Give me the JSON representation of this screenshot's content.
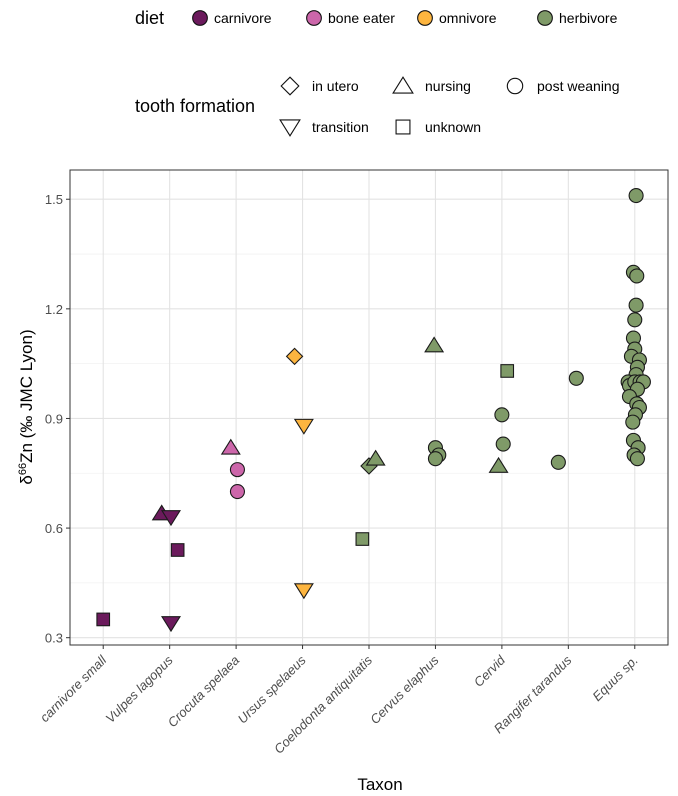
{
  "legend": {
    "diet": {
      "title": "diet",
      "items": [
        {
          "label": "carnivore",
          "color": "#6B1A5C"
        },
        {
          "label": "bone eater",
          "color": "#CC66AA"
        },
        {
          "label": "omnivore",
          "color": "#FDB53F"
        },
        {
          "label": "herbivore",
          "color": "#7F9A68"
        }
      ]
    },
    "tooth_formation": {
      "title": "tooth formation",
      "items": [
        {
          "label": "in utero",
          "shape": "diamond"
        },
        {
          "label": "nursing",
          "shape": "triangle-up"
        },
        {
          "label": "post weaning",
          "shape": "circle"
        },
        {
          "label": "transition",
          "shape": "triangle-down"
        },
        {
          "label": "unknown",
          "shape": "square"
        }
      ]
    }
  },
  "chart_data": {
    "type": "scatter",
    "xlabel": "Taxon",
    "ylabel_main": "δ",
    "ylabel_sup": "66",
    "ylabel_rest": "Zn (‰ JMC Lyon)",
    "categories": [
      "carnivore small",
      "Vulpes lagopus",
      "Crocuta spelaea",
      "Ursus spelaeus",
      "Coelodonta antiquitatis",
      "Cervus elaphus",
      "Cervid",
      "Rangifer tarandus",
      "Equus sp."
    ],
    "ylim": [
      0.28,
      1.58
    ],
    "yticks": [
      0.3,
      0.6,
      0.9,
      1.2,
      1.5
    ],
    "ytick_labels": [
      "0.3",
      "0.6",
      "0.9",
      "1.2",
      "1.5"
    ],
    "grid": true,
    "points": [
      {
        "taxon": "carnivore small",
        "dx": 0.0,
        "y": 0.35,
        "diet": "carnivore",
        "tooth": "unknown"
      },
      {
        "taxon": "Vulpes lagopus",
        "dx": -0.12,
        "y": 0.64,
        "diet": "carnivore",
        "tooth": "triangle-up"
      },
      {
        "taxon": "Vulpes lagopus",
        "dx": 0.02,
        "y": 0.63,
        "diet": "carnivore",
        "tooth": "transition"
      },
      {
        "taxon": "Vulpes lagopus",
        "dx": 0.12,
        "y": 0.54,
        "diet": "carnivore",
        "tooth": "unknown"
      },
      {
        "taxon": "Vulpes lagopus",
        "dx": 0.02,
        "y": 0.34,
        "diet": "carnivore",
        "tooth": "transition"
      },
      {
        "taxon": "Crocuta spelaea",
        "dx": -0.08,
        "y": 0.82,
        "diet": "bone eater",
        "tooth": "nursing"
      },
      {
        "taxon": "Crocuta spelaea",
        "dx": 0.02,
        "y": 0.76,
        "diet": "bone eater",
        "tooth": "post weaning"
      },
      {
        "taxon": "Crocuta spelaea",
        "dx": 0.02,
        "y": 0.7,
        "diet": "bone eater",
        "tooth": "post weaning"
      },
      {
        "taxon": "Ursus spelaeus",
        "dx": -0.12,
        "y": 1.07,
        "diet": "omnivore",
        "tooth": "in utero"
      },
      {
        "taxon": "Ursus spelaeus",
        "dx": 0.02,
        "y": 0.88,
        "diet": "omnivore",
        "tooth": "transition"
      },
      {
        "taxon": "Ursus spelaeus",
        "dx": 0.02,
        "y": 0.43,
        "diet": "omnivore",
        "tooth": "transition"
      },
      {
        "taxon": "Coelodonta antiquitatis",
        "dx": 0.0,
        "y": 0.77,
        "diet": "herbivore",
        "tooth": "in utero"
      },
      {
        "taxon": "Coelodonta antiquitatis",
        "dx": 0.1,
        "y": 0.79,
        "diet": "herbivore",
        "tooth": "nursing"
      },
      {
        "taxon": "Coelodonta antiquitatis",
        "dx": -0.1,
        "y": 0.57,
        "diet": "herbivore",
        "tooth": "unknown"
      },
      {
        "taxon": "Cervus elaphus",
        "dx": -0.02,
        "y": 1.1,
        "diet": "herbivore",
        "tooth": "nursing"
      },
      {
        "taxon": "Cervus elaphus",
        "dx": 0.0,
        "y": 0.82,
        "diet": "herbivore",
        "tooth": "post weaning"
      },
      {
        "taxon": "Cervus elaphus",
        "dx": 0.05,
        "y": 0.8,
        "diet": "herbivore",
        "tooth": "post weaning"
      },
      {
        "taxon": "Cervus elaphus",
        "dx": 0.0,
        "y": 0.79,
        "diet": "herbivore",
        "tooth": "post weaning"
      },
      {
        "taxon": "Cervid",
        "dx": 0.08,
        "y": 1.03,
        "diet": "herbivore",
        "tooth": "unknown"
      },
      {
        "taxon": "Cervid",
        "dx": 0.0,
        "y": 0.91,
        "diet": "herbivore",
        "tooth": "post weaning"
      },
      {
        "taxon": "Cervid",
        "dx": 0.02,
        "y": 0.83,
        "diet": "herbivore",
        "tooth": "post weaning"
      },
      {
        "taxon": "Cervid",
        "dx": -0.05,
        "y": 0.77,
        "diet": "herbivore",
        "tooth": "nursing"
      },
      {
        "taxon": "Rangifer tarandus",
        "dx": 0.12,
        "y": 1.01,
        "diet": "herbivore",
        "tooth": "post weaning"
      },
      {
        "taxon": "Rangifer tarandus",
        "dx": -0.15,
        "y": 0.78,
        "diet": "herbivore",
        "tooth": "post weaning"
      },
      {
        "taxon": "Equus sp.",
        "dx": 0.02,
        "y": 1.51,
        "diet": "herbivore",
        "tooth": "post weaning"
      },
      {
        "taxon": "Equus sp.",
        "dx": -0.02,
        "y": 1.3,
        "diet": "herbivore",
        "tooth": "post weaning"
      },
      {
        "taxon": "Equus sp.",
        "dx": 0.03,
        "y": 1.29,
        "diet": "herbivore",
        "tooth": "post weaning"
      },
      {
        "taxon": "Equus sp.",
        "dx": 0.02,
        "y": 1.21,
        "diet": "herbivore",
        "tooth": "post weaning"
      },
      {
        "taxon": "Equus sp.",
        "dx": 0.0,
        "y": 1.17,
        "diet": "herbivore",
        "tooth": "post weaning"
      },
      {
        "taxon": "Equus sp.",
        "dx": -0.02,
        "y": 1.12,
        "diet": "herbivore",
        "tooth": "post weaning"
      },
      {
        "taxon": "Equus sp.",
        "dx": 0.0,
        "y": 1.09,
        "diet": "herbivore",
        "tooth": "post weaning"
      },
      {
        "taxon": "Equus sp.",
        "dx": -0.05,
        "y": 1.07,
        "diet": "herbivore",
        "tooth": "post weaning"
      },
      {
        "taxon": "Equus sp.",
        "dx": 0.07,
        "y": 1.06,
        "diet": "herbivore",
        "tooth": "post weaning"
      },
      {
        "taxon": "Equus sp.",
        "dx": 0.04,
        "y": 1.04,
        "diet": "herbivore",
        "tooth": "post weaning"
      },
      {
        "taxon": "Equus sp.",
        "dx": 0.02,
        "y": 1.02,
        "diet": "herbivore",
        "tooth": "post weaning"
      },
      {
        "taxon": "Equus sp.",
        "dx": -0.1,
        "y": 1.0,
        "diet": "herbivore",
        "tooth": "post weaning"
      },
      {
        "taxon": "Equus sp.",
        "dx": -0.08,
        "y": 0.99,
        "diet": "herbivore",
        "tooth": "post weaning"
      },
      {
        "taxon": "Equus sp.",
        "dx": 0.0,
        "y": 1.0,
        "diet": "herbivore",
        "tooth": "post weaning"
      },
      {
        "taxon": "Equus sp.",
        "dx": 0.08,
        "y": 1.0,
        "diet": "herbivore",
        "tooth": "post weaning"
      },
      {
        "taxon": "Equus sp.",
        "dx": 0.13,
        "y": 1.0,
        "diet": "herbivore",
        "tooth": "post weaning"
      },
      {
        "taxon": "Equus sp.",
        "dx": 0.04,
        "y": 0.98,
        "diet": "herbivore",
        "tooth": "post weaning"
      },
      {
        "taxon": "Equus sp.",
        "dx": -0.08,
        "y": 0.96,
        "diet": "herbivore",
        "tooth": "post weaning"
      },
      {
        "taxon": "Equus sp.",
        "dx": 0.03,
        "y": 0.94,
        "diet": "herbivore",
        "tooth": "post weaning"
      },
      {
        "taxon": "Equus sp.",
        "dx": 0.07,
        "y": 0.93,
        "diet": "herbivore",
        "tooth": "post weaning"
      },
      {
        "taxon": "Equus sp.",
        "dx": 0.01,
        "y": 0.91,
        "diet": "herbivore",
        "tooth": "post weaning"
      },
      {
        "taxon": "Equus sp.",
        "dx": -0.03,
        "y": 0.89,
        "diet": "herbivore",
        "tooth": "post weaning"
      },
      {
        "taxon": "Equus sp.",
        "dx": -0.02,
        "y": 0.84,
        "diet": "herbivore",
        "tooth": "post weaning"
      },
      {
        "taxon": "Equus sp.",
        "dx": 0.05,
        "y": 0.82,
        "diet": "herbivore",
        "tooth": "post weaning"
      },
      {
        "taxon": "Equus sp.",
        "dx": -0.01,
        "y": 0.8,
        "diet": "herbivore",
        "tooth": "post weaning"
      },
      {
        "taxon": "Equus sp.",
        "dx": 0.04,
        "y": 0.79,
        "diet": "herbivore",
        "tooth": "post weaning"
      }
    ]
  }
}
